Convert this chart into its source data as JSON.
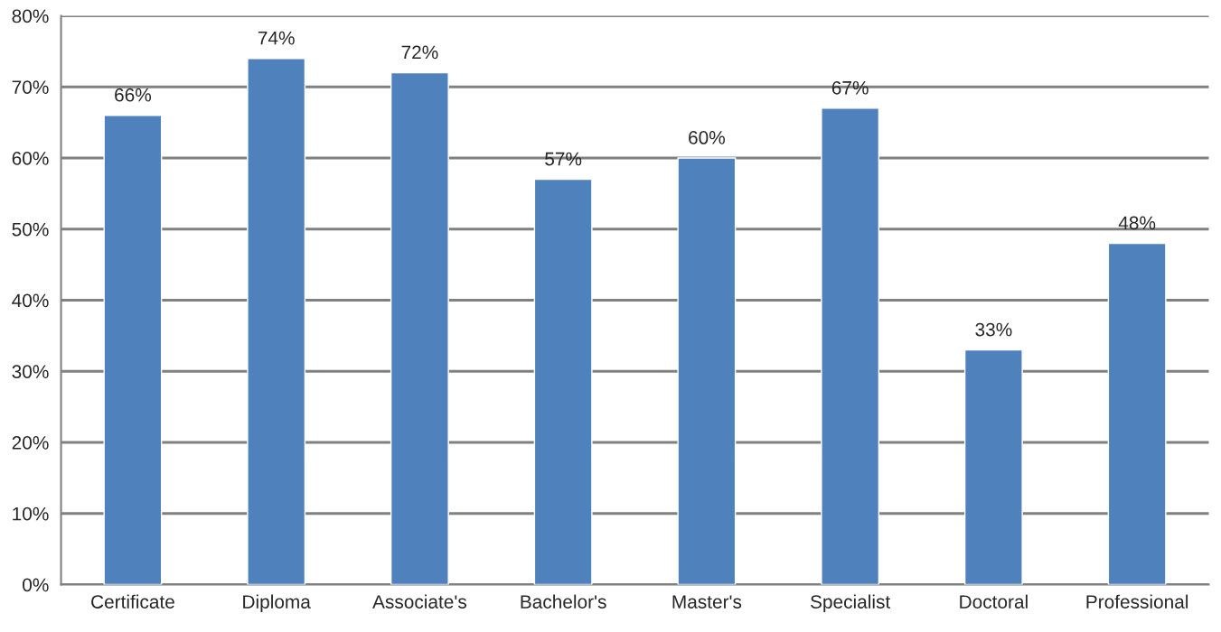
{
  "chart_data": {
    "type": "bar",
    "categories": [
      "Certificate",
      "Diploma",
      "Associate's",
      "Bachelor's",
      "Master's",
      "Specialist",
      "Doctoral",
      "Professional"
    ],
    "values": [
      66,
      74,
      72,
      57,
      60,
      67,
      33,
      48
    ],
    "value_labels": [
      "66%",
      "74%",
      "72%",
      "57%",
      "60%",
      "67%",
      "33%",
      "48%"
    ],
    "color": "#4f81bd",
    "ylim": [
      0,
      80
    ],
    "yticks": [
      {
        "value": 0,
        "label": "0%"
      },
      {
        "value": 10,
        "label": "10%"
      },
      {
        "value": 20,
        "label": "20%"
      },
      {
        "value": 30,
        "label": "30%"
      },
      {
        "value": 40,
        "label": "40%"
      },
      {
        "value": 50,
        "label": "50%"
      },
      {
        "value": 60,
        "label": "60%"
      },
      {
        "value": 70,
        "label": "70%"
      },
      {
        "value": 80,
        "label": "80%"
      }
    ],
    "grid": "y",
    "legend": false
  }
}
